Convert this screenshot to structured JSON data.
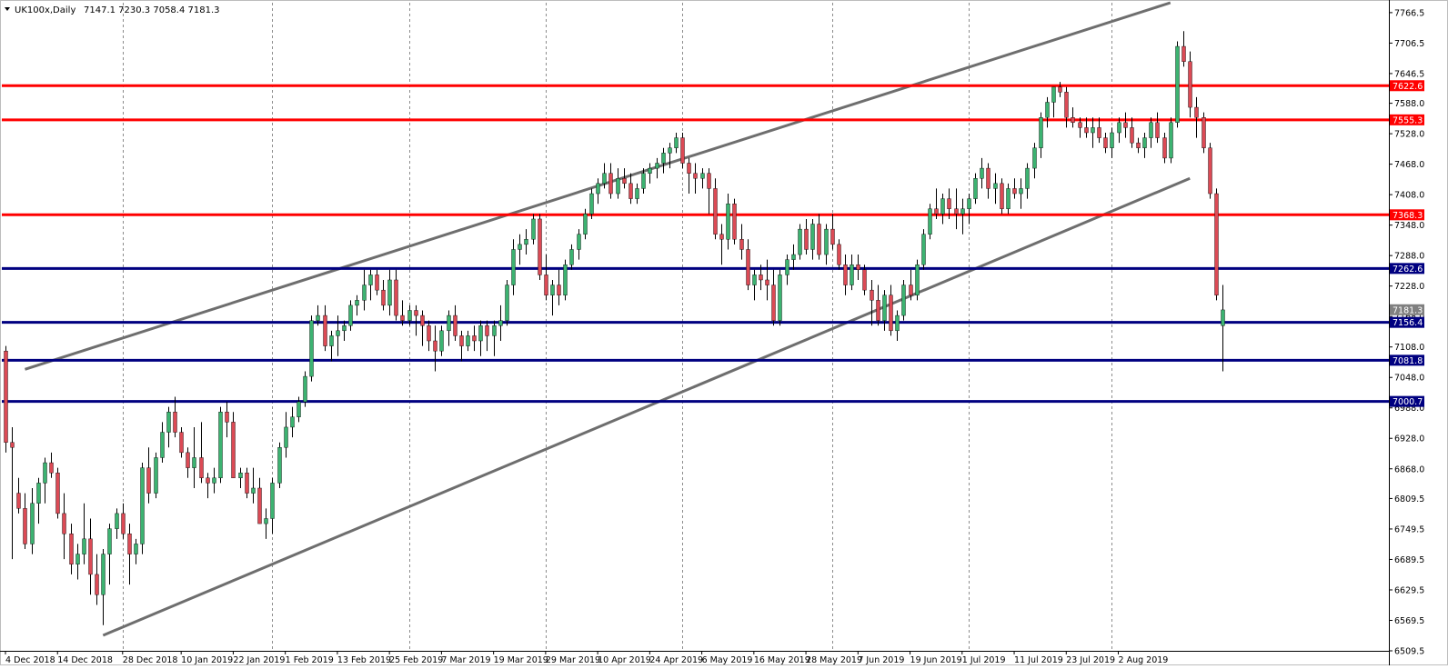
{
  "header": {
    "symbol": "UK100x,Daily",
    "ohlc": "7147.1 7230.3 7058.4 7181.3"
  },
  "chart_data": {
    "type": "candlestick",
    "title": "UK100x,Daily",
    "ylim": [
      6509.5,
      7786
    ],
    "y_ticks": [
      "7766.5",
      "7706.5",
      "7646.5",
      "7588.0",
      "7528.0",
      "7468.0",
      "7408.0",
      "7348.0",
      "7288.0",
      "7228.0",
      "7168.0",
      "7108.0",
      "7048.0",
      "6988.0",
      "6928.0",
      "6868.0",
      "6809.5",
      "6749.5",
      "6689.5",
      "6629.5",
      "6569.5",
      "6509.5"
    ],
    "x_labels": [
      {
        "label": "4 Dec 2018",
        "index": 0
      },
      {
        "label": "14 Dec 2018",
        "index": 8
      },
      {
        "label": "28 Dec 2018",
        "index": 18
      },
      {
        "label": "10 Jan 2019",
        "index": 27
      },
      {
        "label": "22 Jan 2019",
        "index": 35
      },
      {
        "label": "1 Feb 2019",
        "index": 43
      },
      {
        "label": "13 Feb 2019",
        "index": 51
      },
      {
        "label": "25 Feb 2019",
        "index": 59
      },
      {
        "label": "7 Mar 2019",
        "index": 67
      },
      {
        "label": "19 Mar 2019",
        "index": 75
      },
      {
        "label": "29 Mar 2019",
        "index": 83
      },
      {
        "label": "10 Apr 2019",
        "index": 91
      },
      {
        "label": "24 Apr 2019",
        "index": 99
      },
      {
        "label": "6 May 2019",
        "index": 107
      },
      {
        "label": "16 May 2019",
        "index": 115
      },
      {
        "label": "28 May 2019",
        "index": 123
      },
      {
        "label": "7 Jun 2019",
        "index": 131
      },
      {
        "label": "19 Jun 2019",
        "index": 139
      },
      {
        "label": "1 Jul 2019",
        "index": 147
      },
      {
        "label": "11 Jul 2019",
        "index": 155
      },
      {
        "label": "23 Jul 2019",
        "index": 163
      },
      {
        "label": "2 Aug 2019",
        "index": 171
      }
    ],
    "separators": [
      18,
      41,
      62,
      83,
      104,
      127,
      148,
      170
    ],
    "candles": [
      [
        7100,
        7110,
        6900,
        6920
      ],
      [
        6920,
        6950,
        6690,
        6910
      ],
      [
        6820,
        6850,
        6780,
        6790
      ],
      [
        6790,
        6820,
        6710,
        6720
      ],
      [
        6720,
        6830,
        6700,
        6800
      ],
      [
        6800,
        6850,
        6760,
        6840
      ],
      [
        6840,
        6890,
        6800,
        6880
      ],
      [
        6880,
        6900,
        6850,
        6860
      ],
      [
        6860,
        6870,
        6770,
        6780
      ],
      [
        6780,
        6820,
        6690,
        6740
      ],
      [
        6740,
        6760,
        6660,
        6680
      ],
      [
        6680,
        6720,
        6650,
        6700
      ],
      [
        6700,
        6800,
        6680,
        6730
      ],
      [
        6730,
        6770,
        6620,
        6660
      ],
      [
        6660,
        6700,
        6600,
        6620
      ],
      [
        6620,
        6710,
        6560,
        6700
      ],
      [
        6700,
        6760,
        6640,
        6750
      ],
      [
        6750,
        6790,
        6730,
        6780
      ],
      [
        6780,
        6800,
        6730,
        6740
      ],
      [
        6740,
        6760,
        6640,
        6700
      ],
      [
        6700,
        6730,
        6680,
        6720
      ],
      [
        6720,
        6880,
        6700,
        6870
      ],
      [
        6870,
        6910,
        6800,
        6820
      ],
      [
        6820,
        6900,
        6810,
        6890
      ],
      [
        6890,
        6960,
        6880,
        6940
      ],
      [
        6940,
        6990,
        6910,
        6980
      ],
      [
        6980,
        7010,
        6930,
        6940
      ],
      [
        6940,
        6950,
        6890,
        6900
      ],
      [
        6900,
        6910,
        6850,
        6870
      ],
      [
        6870,
        6950,
        6830,
        6890
      ],
      [
        6890,
        6960,
        6840,
        6850
      ],
      [
        6850,
        6860,
        6810,
        6840
      ],
      [
        6840,
        6870,
        6820,
        6850
      ],
      [
        6850,
        6990,
        6840,
        6980
      ],
      [
        6980,
        7000,
        6930,
        6960
      ],
      [
        6960,
        6980,
        6850,
        6850
      ],
      [
        6850,
        6870,
        6830,
        6860
      ],
      [
        6860,
        6870,
        6810,
        6820
      ],
      [
        6820,
        6870,
        6800,
        6830
      ],
      [
        6830,
        6850,
        6760,
        6760
      ],
      [
        6760,
        6790,
        6730,
        6770
      ],
      [
        6770,
        6850,
        6740,
        6840
      ],
      [
        6840,
        6920,
        6830,
        6910
      ],
      [
        6910,
        6980,
        6890,
        6950
      ],
      [
        6950,
        6990,
        6930,
        6970
      ],
      [
        6970,
        7010,
        6960,
        7000
      ],
      [
        7000,
        7060,
        6990,
        7050
      ],
      [
        7050,
        7170,
        7040,
        7160
      ],
      [
        7160,
        7190,
        7150,
        7170
      ],
      [
        7170,
        7190,
        7100,
        7110
      ],
      [
        7110,
        7140,
        7080,
        7130
      ],
      [
        7130,
        7170,
        7090,
        7140
      ],
      [
        7140,
        7160,
        7120,
        7150
      ],
      [
        7150,
        7200,
        7140,
        7190
      ],
      [
        7190,
        7210,
        7170,
        7200
      ],
      [
        7200,
        7260,
        7180,
        7230
      ],
      [
        7230,
        7260,
        7200,
        7250
      ],
      [
        7250,
        7260,
        7210,
        7220
      ],
      [
        7220,
        7240,
        7180,
        7190
      ],
      [
        7190,
        7260,
        7170,
        7240
      ],
      [
        7240,
        7260,
        7160,
        7170
      ],
      [
        7170,
        7200,
        7150,
        7160
      ],
      [
        7160,
        7190,
        7150,
        7180
      ],
      [
        7180,
        7190,
        7130,
        7170
      ],
      [
        7170,
        7180,
        7110,
        7150
      ],
      [
        7150,
        7160,
        7100,
        7120
      ],
      [
        7120,
        7150,
        7060,
        7100
      ],
      [
        7100,
        7150,
        7090,
        7140
      ],
      [
        7140,
        7180,
        7110,
        7170
      ],
      [
        7170,
        7190,
        7120,
        7130
      ],
      [
        7130,
        7140,
        7080,
        7110
      ],
      [
        7110,
        7140,
        7100,
        7130
      ],
      [
        7130,
        7150,
        7100,
        7120
      ],
      [
        7120,
        7160,
        7090,
        7150
      ],
      [
        7150,
        7160,
        7100,
        7130
      ],
      [
        7130,
        7160,
        7090,
        7150
      ],
      [
        7150,
        7190,
        7120,
        7160
      ],
      [
        7160,
        7240,
        7150,
        7230
      ],
      [
        7230,
        7320,
        7210,
        7300
      ],
      [
        7300,
        7330,
        7270,
        7310
      ],
      [
        7310,
        7340,
        7290,
        7320
      ],
      [
        7320,
        7370,
        7310,
        7360
      ],
      [
        7360,
        7370,
        7240,
        7250
      ],
      [
        7250,
        7290,
        7200,
        7210
      ],
      [
        7210,
        7240,
        7170,
        7230
      ],
      [
        7230,
        7260,
        7190,
        7210
      ],
      [
        7210,
        7280,
        7200,
        7270
      ],
      [
        7270,
        7310,
        7260,
        7300
      ],
      [
        7300,
        7340,
        7280,
        7330
      ],
      [
        7330,
        7380,
        7320,
        7370
      ],
      [
        7370,
        7420,
        7360,
        7410
      ],
      [
        7410,
        7440,
        7390,
        7430
      ],
      [
        7430,
        7470,
        7420,
        7450
      ],
      [
        7450,
        7470,
        7400,
        7410
      ],
      [
        7410,
        7460,
        7400,
        7440
      ],
      [
        7440,
        7460,
        7420,
        7430
      ],
      [
        7430,
        7450,
        7390,
        7400
      ],
      [
        7400,
        7430,
        7390,
        7420
      ],
      [
        7420,
        7460,
        7410,
        7450
      ],
      [
        7450,
        7470,
        7430,
        7460
      ],
      [
        7460,
        7480,
        7440,
        7470
      ],
      [
        7470,
        7500,
        7450,
        7490
      ],
      [
        7490,
        7510,
        7460,
        7500
      ],
      [
        7500,
        7530,
        7490,
        7520
      ],
      [
        7520,
        7530,
        7460,
        7470
      ],
      [
        7470,
        7480,
        7410,
        7450
      ],
      [
        7450,
        7470,
        7410,
        7440
      ],
      [
        7440,
        7460,
        7420,
        7450
      ],
      [
        7450,
        7460,
        7370,
        7420
      ],
      [
        7420,
        7440,
        7320,
        7330
      ],
      [
        7330,
        7350,
        7270,
        7320
      ],
      [
        7320,
        7410,
        7300,
        7390
      ],
      [
        7390,
        7400,
        7310,
        7320
      ],
      [
        7320,
        7350,
        7280,
        7300
      ],
      [
        7300,
        7320,
        7220,
        7230
      ],
      [
        7230,
        7260,
        7200,
        7250
      ],
      [
        7250,
        7270,
        7220,
        7240
      ],
      [
        7240,
        7280,
        7200,
        7230
      ],
      [
        7230,
        7260,
        7150,
        7160
      ],
      [
        7160,
        7260,
        7150,
        7250
      ],
      [
        7250,
        7290,
        7230,
        7280
      ],
      [
        7280,
        7310,
        7260,
        7290
      ],
      [
        7290,
        7350,
        7280,
        7340
      ],
      [
        7340,
        7360,
        7290,
        7300
      ],
      [
        7300,
        7360,
        7280,
        7350
      ],
      [
        7350,
        7370,
        7280,
        7290
      ],
      [
        7290,
        7350,
        7270,
        7340
      ],
      [
        7340,
        7370,
        7300,
        7310
      ],
      [
        7310,
        7320,
        7260,
        7270
      ],
      [
        7270,
        7290,
        7210,
        7230
      ],
      [
        7230,
        7290,
        7220,
        7270
      ],
      [
        7270,
        7290,
        7240,
        7260
      ],
      [
        7260,
        7270,
        7210,
        7220
      ],
      [
        7220,
        7240,
        7150,
        7200
      ],
      [
        7200,
        7230,
        7150,
        7160
      ],
      [
        7160,
        7220,
        7140,
        7210
      ],
      [
        7210,
        7230,
        7130,
        7140
      ],
      [
        7140,
        7180,
        7120,
        7170
      ],
      [
        7170,
        7240,
        7160,
        7230
      ],
      [
        7230,
        7260,
        7200,
        7210
      ],
      [
        7210,
        7280,
        7200,
        7270
      ],
      [
        7270,
        7340,
        7260,
        7330
      ],
      [
        7330,
        7390,
        7320,
        7380
      ],
      [
        7380,
        7420,
        7360,
        7370
      ],
      [
        7370,
        7410,
        7350,
        7400
      ],
      [
        7400,
        7420,
        7360,
        7380
      ],
      [
        7380,
        7420,
        7340,
        7370
      ],
      [
        7370,
        7400,
        7330,
        7380
      ],
      [
        7380,
        7410,
        7350,
        7400
      ],
      [
        7400,
        7450,
        7390,
        7440
      ],
      [
        7440,
        7480,
        7420,
        7460
      ],
      [
        7460,
        7470,
        7400,
        7420
      ],
      [
        7420,
        7450,
        7390,
        7430
      ],
      [
        7430,
        7440,
        7370,
        7380
      ],
      [
        7380,
        7430,
        7370,
        7420
      ],
      [
        7420,
        7440,
        7400,
        7410
      ],
      [
        7410,
        7440,
        7380,
        7420
      ],
      [
        7420,
        7470,
        7400,
        7460
      ],
      [
        7460,
        7510,
        7440,
        7500
      ],
      [
        7500,
        7570,
        7480,
        7560
      ],
      [
        7560,
        7600,
        7540,
        7590
      ],
      [
        7590,
        7620,
        7560,
        7620
      ],
      [
        7620,
        7630,
        7600,
        7610
      ],
      [
        7610,
        7620,
        7540,
        7560
      ],
      [
        7560,
        7580,
        7540,
        7550
      ],
      [
        7550,
        7560,
        7520,
        7540
      ],
      [
        7540,
        7560,
        7520,
        7530
      ],
      [
        7530,
        7560,
        7500,
        7540
      ],
      [
        7540,
        7560,
        7510,
        7520
      ],
      [
        7520,
        7530,
        7490,
        7500
      ],
      [
        7500,
        7540,
        7480,
        7530
      ],
      [
        7530,
        7560,
        7510,
        7550
      ],
      [
        7550,
        7570,
        7520,
        7540
      ],
      [
        7540,
        7560,
        7500,
        7510
      ],
      [
        7510,
        7520,
        7490,
        7500
      ],
      [
        7500,
        7530,
        7480,
        7520
      ],
      [
        7520,
        7560,
        7500,
        7550
      ],
      [
        7550,
        7570,
        7510,
        7520
      ],
      [
        7520,
        7530,
        7470,
        7480
      ],
      [
        7480,
        7560,
        7470,
        7550
      ],
      [
        7550,
        7710,
        7540,
        7700
      ],
      [
        7700,
        7730,
        7660,
        7670
      ],
      [
        7670,
        7690,
        7560,
        7580
      ],
      [
        7580,
        7600,
        7520,
        7560
      ],
      [
        7560,
        7570,
        7490,
        7500
      ],
      [
        7500,
        7510,
        7400,
        7410
      ],
      [
        7410,
        7420,
        7200,
        7210
      ],
      [
        7150,
        7230,
        7060,
        7181
      ]
    ],
    "hlines": [
      {
        "value": 7622.6,
        "label": "7622.6",
        "color": "#ff0000"
      },
      {
        "value": 7555.3,
        "label": "7555.3",
        "color": "#ff0000"
      },
      {
        "value": 7368.3,
        "label": "7368.3",
        "color": "#ff0000"
      },
      {
        "value": 7262.6,
        "label": "7262.6",
        "color": "#000080"
      },
      {
        "value": 7156.4,
        "label": "7156.4",
        "color": "#000080"
      },
      {
        "value": 7081.8,
        "label": "7081.8",
        "color": "#000080"
      },
      {
        "value": 7000.7,
        "label": "7000.7",
        "color": "#000080"
      }
    ],
    "trendlines": [
      {
        "from": [
          3,
          7064
        ],
        "to": [
          179,
          7786
        ]
      },
      {
        "from": [
          15,
          6540
        ],
        "to": [
          182,
          7440
        ]
      }
    ],
    "current_price": {
      "value": 7181.3,
      "label": "7181.3",
      "color": "#808080"
    },
    "colors": {
      "up": "#3cb371",
      "down": "#dc4a55",
      "wick": "#000000",
      "trend": "#6e6e6e",
      "grid": "#8c8c8c"
    }
  }
}
